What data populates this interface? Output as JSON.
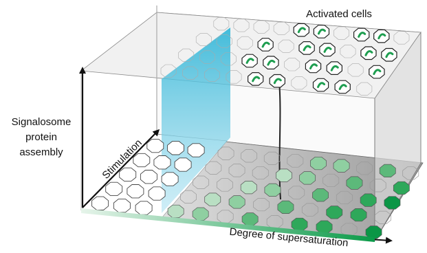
{
  "labels": {
    "activated": "Activated cells",
    "y_axis": [
      "Signalosome",
      "protein",
      "assembly"
    ],
    "depth_axis": "Stimulation",
    "x_axis": "Degree of supersaturation"
  }
}
